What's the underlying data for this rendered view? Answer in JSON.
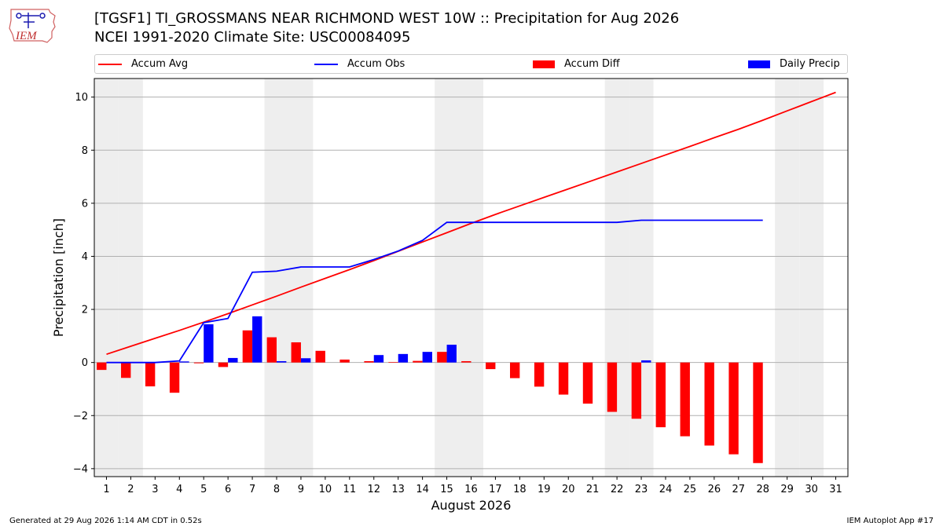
{
  "header": {
    "title_line1": "[TGSF1] TI_GROSSMANS NEAR RICHMOND WEST 10W :: Precipitation for Aug 2026",
    "title_line2": "NCEI 1991-2020 Climate Site: USC00084095",
    "logo_text": "IEM"
  },
  "footer": {
    "generated": "Generated at 29 Aug 2026 1:14 AM CDT in 0.52s",
    "app": "IEM Autoplot App #17"
  },
  "colors": {
    "accum_avg": "#ff0000",
    "accum_obs": "#0000ff",
    "accum_diff": "#ff0000",
    "daily_precip": "#0000ff",
    "weekend_shade": "#eeeeee",
    "grid": "#b0b0b0"
  },
  "chart_data": {
    "type": "bar",
    "xlabel": "August 2026",
    "ylabel": "Precipitation [inch]",
    "xlim": [
      0.5,
      31.5
    ],
    "ylim": [
      -4.3,
      10.7
    ],
    "yticks": [
      -4,
      -2,
      0,
      2,
      4,
      6,
      8,
      10
    ],
    "xticks": [
      1,
      2,
      3,
      4,
      5,
      6,
      7,
      8,
      9,
      10,
      11,
      12,
      13,
      14,
      15,
      16,
      17,
      18,
      19,
      20,
      21,
      22,
      23,
      24,
      25,
      26,
      27,
      28,
      29,
      30,
      31
    ],
    "grid": "horizontal",
    "legend_position": "top",
    "weekend_days": [
      1,
      2,
      8,
      9,
      15,
      16,
      22,
      23,
      29,
      30
    ],
    "legend": [
      "Accum Avg",
      "Accum Obs",
      "Accum Diff",
      "Daily Precip"
    ],
    "series": [
      {
        "name": "Accum Avg",
        "type": "line",
        "days": [
          1,
          2,
          3,
          4,
          5,
          6,
          7,
          8,
          9,
          10,
          11,
          12,
          13,
          14,
          15,
          16,
          17,
          18,
          19,
          20,
          21,
          22,
          23,
          24,
          25,
          26,
          27,
          28,
          29,
          30,
          31
        ],
        "values": [
          0.31,
          0.61,
          0.91,
          1.21,
          1.52,
          1.84,
          2.17,
          2.5,
          2.84,
          3.17,
          3.5,
          3.84,
          4.19,
          4.54,
          4.89,
          5.24,
          5.58,
          5.9,
          6.22,
          6.54,
          6.86,
          7.18,
          7.5,
          7.82,
          8.14,
          8.47,
          8.79,
          9.13,
          9.48,
          9.83,
          10.18
        ]
      },
      {
        "name": "Accum Obs",
        "type": "line",
        "days": [
          1,
          2,
          3,
          4,
          5,
          6,
          7,
          8,
          9,
          10,
          11,
          12,
          13,
          14,
          15,
          16,
          17,
          18,
          19,
          20,
          21,
          22,
          23,
          24,
          25,
          26,
          27,
          28
        ],
        "values": [
          0.0,
          0.0,
          0.0,
          0.06,
          1.5,
          1.66,
          3.4,
          3.44,
          3.6,
          3.6,
          3.6,
          3.88,
          4.2,
          4.6,
          5.28,
          5.28,
          5.28,
          5.28,
          5.28,
          5.28,
          5.28,
          5.28,
          5.36,
          5.36,
          5.36,
          5.36,
          5.36,
          5.36
        ]
      },
      {
        "name": "Accum Diff",
        "type": "bar",
        "days": [
          1,
          2,
          3,
          4,
          5,
          6,
          7,
          8,
          9,
          10,
          11,
          12,
          13,
          14,
          15,
          16,
          17,
          18,
          19,
          20,
          21,
          22,
          23,
          24,
          25,
          26,
          27,
          28
        ],
        "values": [
          -0.28,
          -0.58,
          -0.9,
          -1.14,
          -0.03,
          -0.17,
          1.21,
          0.95,
          0.76,
          0.44,
          0.11,
          0.05,
          0.02,
          0.06,
          0.4,
          0.05,
          -0.25,
          -0.59,
          -0.91,
          -1.21,
          -1.55,
          -1.86,
          -2.12,
          -2.44,
          -2.78,
          -3.13,
          -3.46,
          -3.79
        ]
      },
      {
        "name": "Daily Precip",
        "type": "bar",
        "days": [
          1,
          2,
          3,
          4,
          5,
          6,
          7,
          8,
          9,
          10,
          11,
          12,
          13,
          14,
          15,
          16,
          17,
          18,
          19,
          20,
          21,
          22,
          23,
          24,
          25,
          26,
          27,
          28
        ],
        "values": [
          0,
          0,
          0,
          0.04,
          1.44,
          0.17,
          1.74,
          0.05,
          0.16,
          0,
          0,
          0.28,
          0.32,
          0.4,
          0.67,
          0,
          0,
          0,
          0,
          0,
          0,
          0,
          0.08,
          0,
          0,
          0,
          0,
          0
        ]
      }
    ]
  }
}
